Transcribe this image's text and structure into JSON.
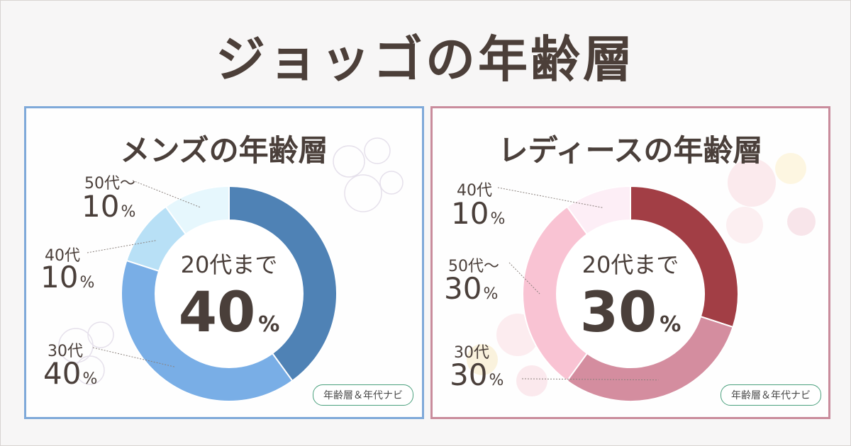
{
  "title": "ジョッゴの年齢層",
  "chart_data": [
    {
      "type": "pie",
      "title": "メンズの年齢層",
      "center": {
        "label": "20代まで",
        "value": "40",
        "unit": "%"
      },
      "slices": [
        {
          "name": "20代まで",
          "value": 40,
          "color": "#4f82b5"
        },
        {
          "name": "30代",
          "value": 40,
          "color": "#79aee6"
        },
        {
          "name": "40代",
          "value": 10,
          "color": "#b8e0f6"
        },
        {
          "name": "50代〜",
          "value": 10,
          "color": "#e6f7fd"
        }
      ],
      "labels": [
        {
          "age": "50代〜",
          "value": "10",
          "unit": "%"
        },
        {
          "age": "40代",
          "value": "10",
          "unit": "%"
        },
        {
          "age": "30代",
          "value": "40",
          "unit": "%"
        }
      ],
      "badge": "年齢層＆年代ナビ"
    },
    {
      "type": "pie",
      "title": "レディースの年齢層",
      "center": {
        "label": "20代まで",
        "value": "30",
        "unit": "%"
      },
      "slices": [
        {
          "name": "20代まで",
          "value": 30,
          "color": "#a23e45"
        },
        {
          "name": "30代",
          "value": 30,
          "color": "#d48d9f"
        },
        {
          "name": "50代〜",
          "value": 30,
          "color": "#f9c3d3"
        },
        {
          "name": "40代",
          "value": 10,
          "color": "#fdeef6"
        }
      ],
      "labels": [
        {
          "age": "40代",
          "value": "10",
          "unit": "%"
        },
        {
          "age": "50代〜",
          "value": "30",
          "unit": "%"
        },
        {
          "age": "30代",
          "value": "30",
          "unit": "%"
        }
      ],
      "badge": "年齢層＆年代ナビ"
    }
  ]
}
